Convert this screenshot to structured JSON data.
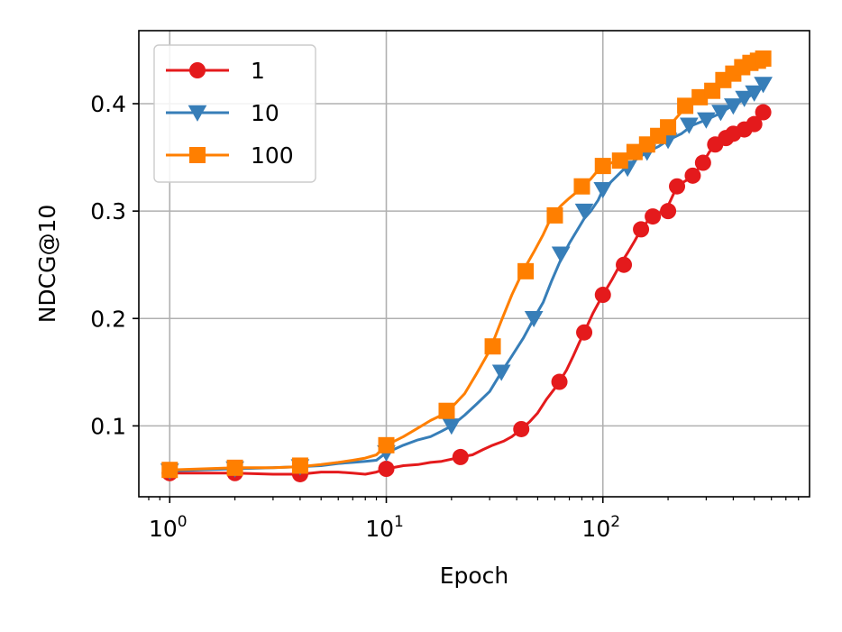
{
  "chart_data": {
    "type": "line",
    "xlabel": "Epoch",
    "ylabel": "NDCG@10",
    "xscale": "log",
    "xlim": [
      0.72,
      900
    ],
    "ylim": [
      0.034,
      0.468
    ],
    "grid": true,
    "legend_placement": "top-left",
    "x_ticks": [
      {
        "value": 1,
        "base": "10",
        "exp": "0"
      },
      {
        "value": 10,
        "base": "10",
        "exp": "1"
      },
      {
        "value": 100,
        "base": "10",
        "exp": "2"
      }
    ],
    "y_ticks": [
      {
        "value": 0.1,
        "label": "0.1"
      },
      {
        "value": 0.2,
        "label": "0.2"
      },
      {
        "value": 0.3,
        "label": "0.3"
      },
      {
        "value": 0.4,
        "label": "0.4"
      }
    ],
    "series": [
      {
        "name": "1",
        "color": "#e41a1c",
        "marker": "circle",
        "x": [
          1,
          2,
          3,
          4,
          5,
          6,
          7,
          8,
          9,
          10,
          12,
          14,
          16,
          18,
          20,
          22,
          25,
          28,
          31,
          35,
          38,
          42,
          46,
          50,
          55,
          60,
          63,
          68,
          73,
          78,
          82,
          90,
          100,
          110,
          120,
          130,
          140,
          150,
          160,
          170,
          180,
          190,
          200,
          220,
          240,
          250,
          270,
          290,
          310,
          340,
          370,
          400,
          430,
          460,
          490,
          520,
          550
        ],
        "y": [
          0.056,
          0.056,
          0.055,
          0.055,
          0.057,
          0.057,
          0.056,
          0.055,
          0.057,
          0.06,
          0.063,
          0.064,
          0.066,
          0.067,
          0.069,
          0.071,
          0.073,
          0.078,
          0.082,
          0.086,
          0.09,
          0.097,
          0.104,
          0.112,
          0.125,
          0.135,
          0.141,
          0.152,
          0.165,
          0.178,
          0.187,
          0.205,
          0.222,
          0.236,
          0.25,
          0.261,
          0.272,
          0.283,
          0.29,
          0.295,
          0.298,
          0.3,
          0.305,
          0.323,
          0.328,
          0.33,
          0.337,
          0.345,
          0.355,
          0.363,
          0.368,
          0.372,
          0.376,
          0.38,
          0.384,
          0.388,
          0.392
        ],
        "markers_x": [
          1,
          2,
          4,
          10,
          22,
          42,
          63,
          82,
          100,
          125,
          150,
          170,
          200,
          220,
          260,
          290,
          330,
          370,
          400,
          450,
          500,
          550
        ],
        "markers_y": [
          0.056,
          0.056,
          0.055,
          0.06,
          0.071,
          0.097,
          0.141,
          0.187,
          0.222,
          0.25,
          0.283,
          0.295,
          0.3,
          0.323,
          0.333,
          0.345,
          0.362,
          0.368,
          0.372,
          0.376,
          0.381,
          0.392
        ]
      },
      {
        "name": "10",
        "color": "#377eb8",
        "marker": "triangle-down",
        "x": [
          1,
          2,
          3,
          4,
          5,
          6,
          7,
          8,
          9,
          10,
          12,
          14,
          16,
          18,
          20,
          23,
          26,
          30,
          34,
          38,
          43,
          48,
          53,
          58,
          64,
          70,
          76,
          82,
          88,
          95,
          100,
          110,
          125,
          140,
          160,
          180,
          200,
          230,
          260,
          300,
          340,
          380,
          420,
          460,
          500,
          550
        ],
        "y": [
          0.058,
          0.06,
          0.061,
          0.062,
          0.063,
          0.065,
          0.066,
          0.067,
          0.068,
          0.075,
          0.082,
          0.087,
          0.09,
          0.095,
          0.1,
          0.11,
          0.12,
          0.132,
          0.15,
          0.165,
          0.182,
          0.2,
          0.215,
          0.235,
          0.255,
          0.27,
          0.282,
          0.293,
          0.3,
          0.31,
          0.32,
          0.328,
          0.339,
          0.347,
          0.355,
          0.36,
          0.366,
          0.372,
          0.38,
          0.385,
          0.39,
          0.396,
          0.401,
          0.405,
          0.41,
          0.418
        ],
        "markers_x": [
          1,
          2,
          4,
          10,
          20,
          34,
          48,
          64,
          82,
          100,
          130,
          160,
          200,
          250,
          300,
          350,
          400,
          450,
          500,
          550
        ],
        "markers_y": [
          0.058,
          0.06,
          0.062,
          0.075,
          0.1,
          0.15,
          0.2,
          0.26,
          0.3,
          0.32,
          0.34,
          0.355,
          0.366,
          0.38,
          0.385,
          0.392,
          0.398,
          0.405,
          0.41,
          0.418
        ]
      },
      {
        "name": "100",
        "color": "#ff7f00",
        "marker": "square",
        "x": [
          1,
          2,
          3,
          4,
          5,
          6,
          7,
          8,
          9,
          10,
          12,
          14,
          16,
          18,
          20,
          23,
          26,
          30,
          34,
          38,
          43,
          48,
          53,
          58,
          64,
          70,
          76,
          82,
          88,
          95,
          100,
          110,
          125,
          140,
          160,
          180,
          200,
          230,
          260,
          300,
          340,
          380,
          420,
          460,
          500,
          550
        ],
        "y": [
          0.059,
          0.061,
          0.061,
          0.062,
          0.064,
          0.066,
          0.068,
          0.07,
          0.073,
          0.082,
          0.09,
          0.098,
          0.105,
          0.11,
          0.117,
          0.13,
          0.148,
          0.17,
          0.198,
          0.222,
          0.245,
          0.262,
          0.278,
          0.295,
          0.305,
          0.312,
          0.318,
          0.324,
          0.33,
          0.338,
          0.342,
          0.345,
          0.35,
          0.356,
          0.362,
          0.37,
          0.378,
          0.392,
          0.402,
          0.41,
          0.42,
          0.426,
          0.432,
          0.437,
          0.44,
          0.442
        ],
        "markers_x": [
          1,
          2,
          4,
          10,
          19,
          31,
          44,
          60,
          80,
          100,
          120,
          140,
          160,
          180,
          200,
          240,
          280,
          320,
          360,
          400,
          440,
          480,
          520,
          550
        ],
        "markers_y": [
          0.059,
          0.061,
          0.063,
          0.082,
          0.114,
          0.174,
          0.244,
          0.296,
          0.323,
          0.342,
          0.347,
          0.355,
          0.362,
          0.37,
          0.378,
          0.398,
          0.406,
          0.412,
          0.422,
          0.428,
          0.434,
          0.438,
          0.44,
          0.442
        ]
      }
    ]
  }
}
